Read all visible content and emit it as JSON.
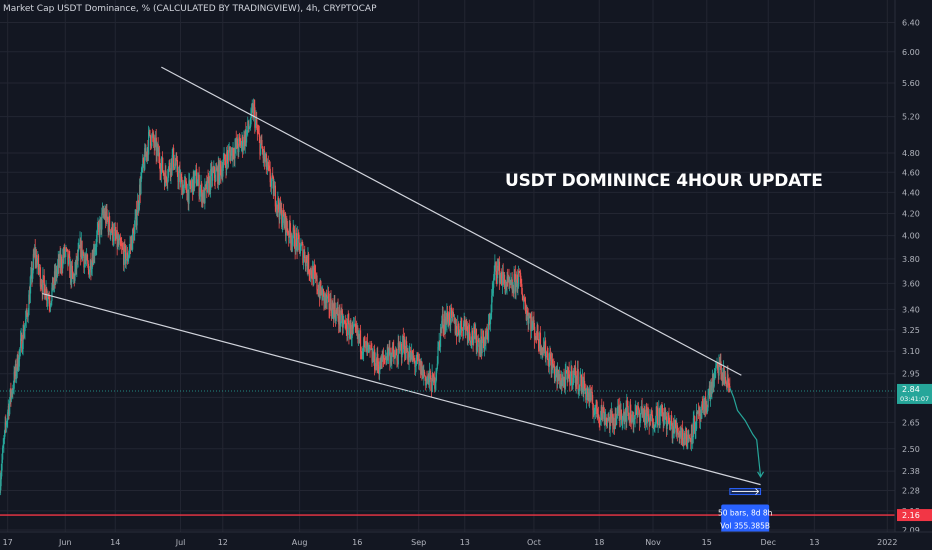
{
  "header": {
    "title": "Market Cap USDT Dominance, % (CALCULATED BY TRADINGVIEW), 4h, CRYPTOCAP"
  },
  "annotation": {
    "text": "USDT DOMININCE 4HOUR UPDATE"
  },
  "colors": {
    "background": "#131722",
    "grid": "#232632",
    "axis_text": "#b2b5be",
    "up": "#26a69a",
    "down": "#ef5350",
    "trendline": "#d1d4dc",
    "last_price": "#26a69a",
    "red_line": "#f23645",
    "measure": "#2962ff",
    "projection": "#26a69a"
  },
  "chart_data": {
    "type": "candlestick",
    "title": "Market Cap USDT Dominance, % (CALCULATED BY TRADINGVIEW), 4h, CRYPTOCAP",
    "y_scale": "log",
    "ylim": [
      2.09,
      6.55
    ],
    "y_ticks": [
      6.4,
      6.0,
      5.6,
      5.2,
      4.8,
      4.6,
      4.4,
      4.2,
      4.0,
      3.8,
      3.6,
      3.4,
      3.25,
      3.1,
      2.95,
      2.8,
      2.65,
      2.5,
      2.38,
      2.28,
      2.18,
      2.09
    ],
    "x_range": [
      "2021-05-15",
      "2022-01-03"
    ],
    "x_ticks": [
      {
        "label": "17",
        "date": "2021-05-17"
      },
      {
        "label": "Jun",
        "date": "2021-06-01"
      },
      {
        "label": "14",
        "date": "2021-06-14"
      },
      {
        "label": "Jul",
        "date": "2021-07-01"
      },
      {
        "label": "12",
        "date": "2021-07-12"
      },
      {
        "label": "Aug",
        "date": "2021-08-01"
      },
      {
        "label": "16",
        "date": "2021-08-16"
      },
      {
        "label": "Sep",
        "date": "2021-09-01"
      },
      {
        "label": "13",
        "date": "2021-09-13"
      },
      {
        "label": "Oct",
        "date": "2021-10-01"
      },
      {
        "label": "18",
        "date": "2021-10-18"
      },
      {
        "label": "Nov",
        "date": "2021-11-01"
      },
      {
        "label": "15",
        "date": "2021-11-15"
      },
      {
        "label": "Dec",
        "date": "2021-12-01"
      },
      {
        "label": "13",
        "date": "2021-12-13"
      },
      {
        "label": "2022",
        "date": "2022-01-01"
      }
    ],
    "price_path": [
      [
        "2021-05-15",
        2.34
      ],
      [
        "2021-05-17",
        2.72
      ],
      [
        "2021-05-19",
        2.95
      ],
      [
        "2021-05-22",
        3.35
      ],
      [
        "2021-05-24",
        3.85
      ],
      [
        "2021-05-26",
        3.6
      ],
      [
        "2021-05-28",
        3.48
      ],
      [
        "2021-05-30",
        3.72
      ],
      [
        "2021-06-01",
        3.85
      ],
      [
        "2021-06-03",
        3.62
      ],
      [
        "2021-06-05",
        3.9
      ],
      [
        "2021-06-07",
        3.7
      ],
      [
        "2021-06-09",
        3.95
      ],
      [
        "2021-06-11",
        4.2
      ],
      [
        "2021-06-13",
        4.05
      ],
      [
        "2021-06-15",
        3.9
      ],
      [
        "2021-06-17",
        3.8
      ],
      [
        "2021-06-19",
        4.05
      ],
      [
        "2021-06-21",
        4.6
      ],
      [
        "2021-06-23",
        5.0
      ],
      [
        "2021-06-25",
        4.8
      ],
      [
        "2021-06-27",
        4.55
      ],
      [
        "2021-06-29",
        4.75
      ],
      [
        "2021-07-01",
        4.5
      ],
      [
        "2021-07-03",
        4.4
      ],
      [
        "2021-07-05",
        4.55
      ],
      [
        "2021-07-07",
        4.35
      ],
      [
        "2021-07-09",
        4.55
      ],
      [
        "2021-07-11",
        4.6
      ],
      [
        "2021-07-13",
        4.75
      ],
      [
        "2021-07-15",
        4.85
      ],
      [
        "2021-07-17",
        4.9
      ],
      [
        "2021-07-19",
        5.1
      ],
      [
        "2021-07-20",
        5.28
      ],
      [
        "2021-07-21",
        5.0
      ],
      [
        "2021-07-23",
        4.7
      ],
      [
        "2021-07-25",
        4.45
      ],
      [
        "2021-07-27",
        4.2
      ],
      [
        "2021-07-29",
        4.05
      ],
      [
        "2021-07-31",
        3.95
      ],
      [
        "2021-08-02",
        3.85
      ],
      [
        "2021-08-04",
        3.7
      ],
      [
        "2021-08-06",
        3.55
      ],
      [
        "2021-08-08",
        3.45
      ],
      [
        "2021-08-10",
        3.4
      ],
      [
        "2021-08-12",
        3.3
      ],
      [
        "2021-08-14",
        3.25
      ],
      [
        "2021-08-16",
        3.2
      ],
      [
        "2021-08-18",
        3.12
      ],
      [
        "2021-08-20",
        3.05
      ],
      [
        "2021-08-22",
        3.0
      ],
      [
        "2021-08-24",
        3.1
      ],
      [
        "2021-08-26",
        3.05
      ],
      [
        "2021-08-28",
        3.15
      ],
      [
        "2021-08-30",
        3.05
      ],
      [
        "2021-09-01",
        3.0
      ],
      [
        "2021-09-03",
        2.92
      ],
      [
        "2021-09-05",
        2.88
      ],
      [
        "2021-09-07",
        3.3
      ],
      [
        "2021-09-09",
        3.35
      ],
      [
        "2021-09-11",
        3.25
      ],
      [
        "2021-09-13",
        3.3
      ],
      [
        "2021-09-15",
        3.2
      ],
      [
        "2021-09-17",
        3.15
      ],
      [
        "2021-09-19",
        3.2
      ],
      [
        "2021-09-21",
        3.75
      ],
      [
        "2021-09-23",
        3.62
      ],
      [
        "2021-09-25",
        3.55
      ],
      [
        "2021-09-27",
        3.65
      ],
      [
        "2021-09-29",
        3.4
      ],
      [
        "2021-10-01",
        3.25
      ],
      [
        "2021-10-03",
        3.15
      ],
      [
        "2021-10-05",
        3.05
      ],
      [
        "2021-10-07",
        2.92
      ],
      [
        "2021-10-09",
        2.9
      ],
      [
        "2021-10-11",
        2.95
      ],
      [
        "2021-10-13",
        2.9
      ],
      [
        "2021-10-15",
        2.82
      ],
      [
        "2021-10-17",
        2.72
      ],
      [
        "2021-10-19",
        2.7
      ],
      [
        "2021-10-21",
        2.65
      ],
      [
        "2021-10-23",
        2.7
      ],
      [
        "2021-10-25",
        2.72
      ],
      [
        "2021-10-27",
        2.68
      ],
      [
        "2021-10-29",
        2.72
      ],
      [
        "2021-10-31",
        2.65
      ],
      [
        "2021-11-02",
        2.7
      ],
      [
        "2021-11-04",
        2.68
      ],
      [
        "2021-11-06",
        2.62
      ],
      [
        "2021-11-08",
        2.6
      ],
      [
        "2021-11-10",
        2.55
      ],
      [
        "2021-11-12",
        2.65
      ],
      [
        "2021-11-14",
        2.7
      ],
      [
        "2021-11-16",
        2.85
      ],
      [
        "2021-11-18",
        3.0
      ],
      [
        "2021-11-19",
        2.95
      ],
      [
        "2021-11-20",
        2.9
      ],
      [
        "2021-11-21",
        2.86
      ]
    ],
    "last_price": {
      "value": "2.84",
      "countdown": "03:41:07"
    },
    "red_line": {
      "value": 2.16,
      "label": "2.16"
    },
    "trendlines": [
      {
        "name": "upper",
        "from": [
          "2021-06-26",
          5.8
        ],
        "to": [
          "2021-11-24",
          2.94
        ]
      },
      {
        "name": "lower",
        "from": [
          "2021-05-26",
          3.52
        ],
        "to": [
          "2021-11-29",
          2.31
        ]
      }
    ],
    "projection": [
      [
        "2021-11-21",
        2.86
      ],
      [
        "2021-11-22",
        2.8
      ],
      [
        "2021-11-23",
        2.72
      ],
      [
        "2021-11-25",
        2.66
      ],
      [
        "2021-11-26",
        2.62
      ],
      [
        "2021-11-27",
        2.58
      ],
      [
        "2021-11-28",
        2.55
      ],
      [
        "2021-11-29",
        2.35
      ]
    ],
    "measure": {
      "from": [
        "2021-11-21",
        2.29
      ],
      "to": [
        "2021-11-29",
        2.26
      ],
      "label1": "50 bars, 8d 8h",
      "label2": "Vol 355.385B"
    }
  }
}
